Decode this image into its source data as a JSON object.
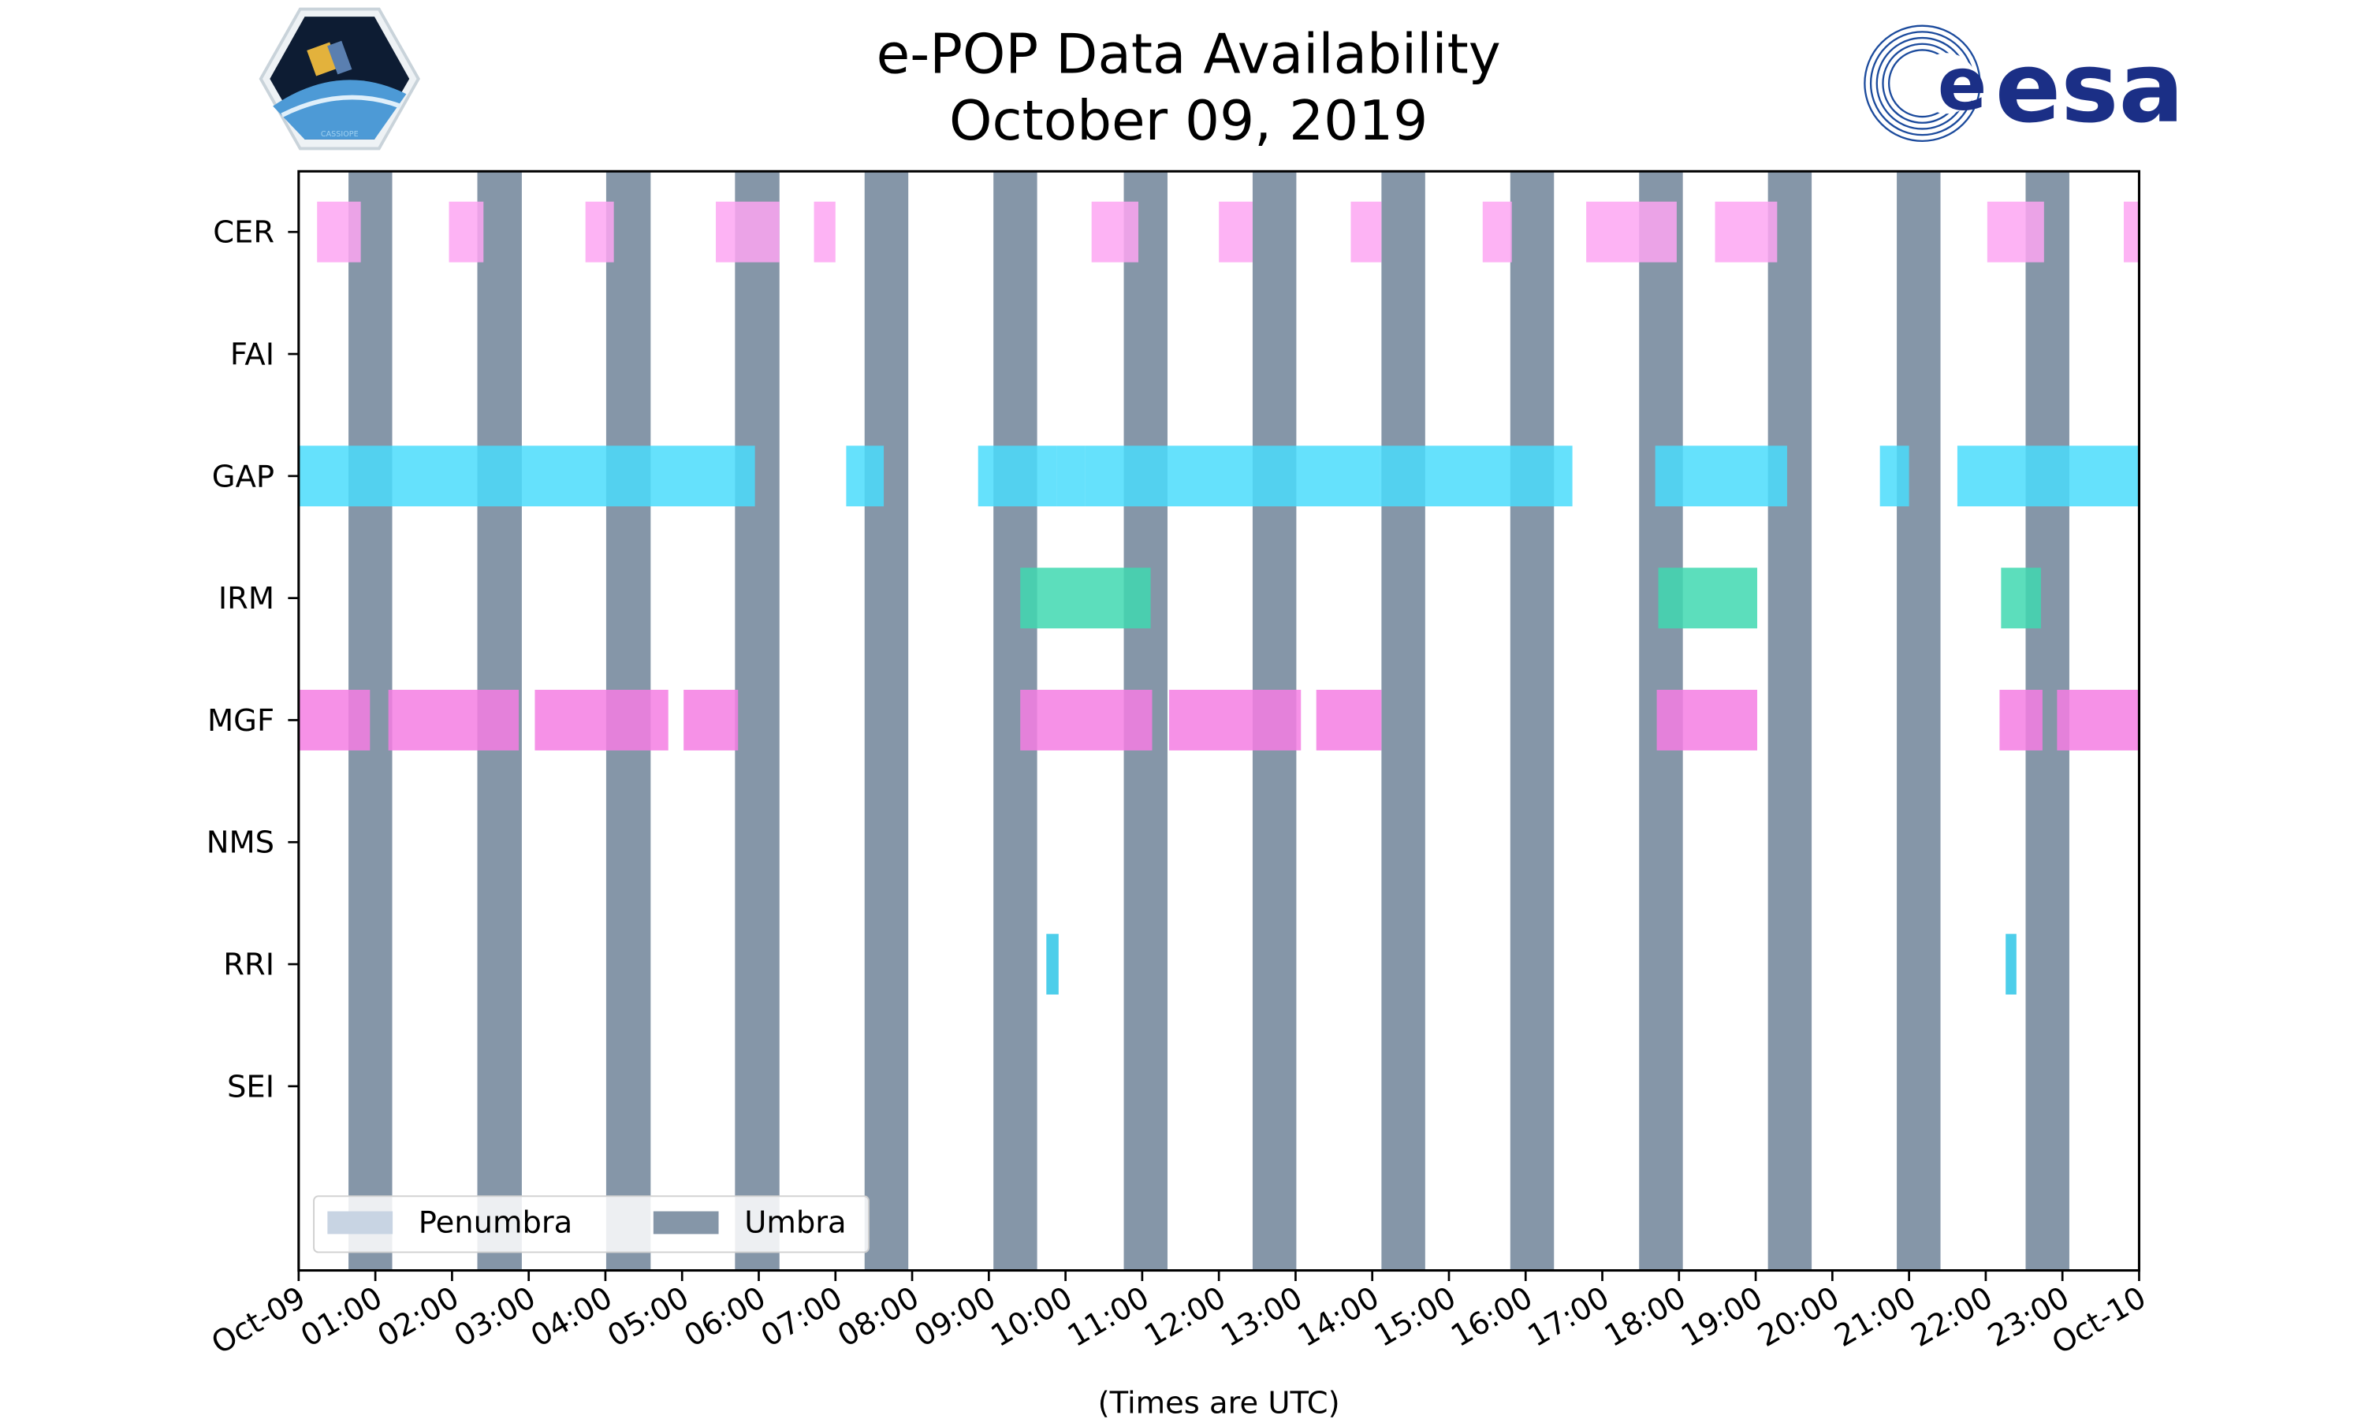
{
  "chart_data": {
    "type": "timeline",
    "title": "e-POP Data Availability",
    "subtitle": "October 09, 2019",
    "xlabel": "(Times are UTC)",
    "xlim_hours": [
      0,
      24
    ],
    "x_tick_labels": [
      "Oct-09",
      "01:00",
      "02:00",
      "03:00",
      "04:00",
      "05:00",
      "06:00",
      "07:00",
      "08:00",
      "09:00",
      "10:00",
      "11:00",
      "12:00",
      "13:00",
      "14:00",
      "15:00",
      "16:00",
      "17:00",
      "18:00",
      "19:00",
      "20:00",
      "21:00",
      "22:00",
      "23:00",
      "Oct-10"
    ],
    "instruments": [
      "CER",
      "FAI",
      "GAP",
      "IRM",
      "MGF",
      "NMS",
      "RRI",
      "SEI"
    ],
    "legend": {
      "placement": "lower-left",
      "items": [
        {
          "label": "Penumbra",
          "color": "#c8d4e3"
        },
        {
          "label": "Umbra",
          "color": "#8596a8"
        }
      ]
    },
    "umbra": [
      [
        0.65,
        1.22
      ],
      [
        2.33,
        2.91
      ],
      [
        4.01,
        4.59
      ],
      [
        5.69,
        6.27
      ],
      [
        7.38,
        7.95
      ],
      [
        9.06,
        9.63
      ],
      [
        10.76,
        11.33
      ],
      [
        12.44,
        13.01
      ],
      [
        14.12,
        14.69
      ],
      [
        15.8,
        16.37
      ],
      [
        17.48,
        18.05
      ],
      [
        19.16,
        19.73
      ],
      [
        20.84,
        21.41
      ],
      [
        22.52,
        23.09
      ]
    ],
    "series": [
      {
        "name": "CER",
        "color": "#fda6f2",
        "intervals": [
          [
            0.24,
            0.81
          ],
          [
            1.96,
            2.41
          ],
          [
            3.74,
            4.11
          ],
          [
            5.44,
            6.27
          ],
          [
            6.72,
            7.0
          ],
          [
            10.34,
            10.95
          ],
          [
            12.0,
            12.44
          ],
          [
            13.72,
            14.12
          ],
          [
            15.44,
            15.82
          ],
          [
            16.79,
            17.97
          ],
          [
            18.47,
            19.28
          ],
          [
            22.02,
            22.76
          ],
          [
            23.8,
            24.0
          ]
        ]
      },
      {
        "name": "FAI",
        "color": "#cccccc",
        "intervals": []
      },
      {
        "name": "GAP",
        "color": "#4adcfb",
        "intervals": [
          [
            0.0,
            5.95
          ],
          [
            7.14,
            7.63
          ],
          [
            8.86,
            9.89
          ],
          [
            9.89,
            10.26
          ],
          [
            10.26,
            14.1
          ],
          [
            14.1,
            16.61
          ],
          [
            17.69,
            19.41
          ],
          [
            20.62,
            21.0
          ],
          [
            21.63,
            24.0
          ]
        ]
      },
      {
        "name": "IRM",
        "color": "#3fd8b0",
        "intervals": [
          [
            9.41,
            11.11
          ],
          [
            17.73,
            19.02
          ],
          [
            22.2,
            22.72
          ]
        ]
      },
      {
        "name": "MGF",
        "color": "#f47ee3",
        "intervals": [
          [
            0.0,
            0.93
          ],
          [
            1.17,
            2.87
          ],
          [
            3.08,
            4.82
          ],
          [
            5.02,
            5.73
          ],
          [
            9.41,
            11.13
          ],
          [
            11.35,
            13.07
          ],
          [
            13.27,
            14.12
          ],
          [
            17.71,
            19.02
          ],
          [
            22.18,
            22.74
          ],
          [
            22.93,
            24.0
          ]
        ]
      },
      {
        "name": "NMS",
        "color": "#cccccc",
        "intervals": []
      },
      {
        "name": "RRI",
        "color": "#2ec6e6",
        "intervals": [
          [
            9.75,
            9.91
          ],
          [
            22.26,
            22.4
          ]
        ]
      },
      {
        "name": "SEI",
        "color": "#cccccc",
        "intervals": []
      }
    ]
  },
  "logos": {
    "left": "CASSIOPE",
    "right": "esa"
  }
}
